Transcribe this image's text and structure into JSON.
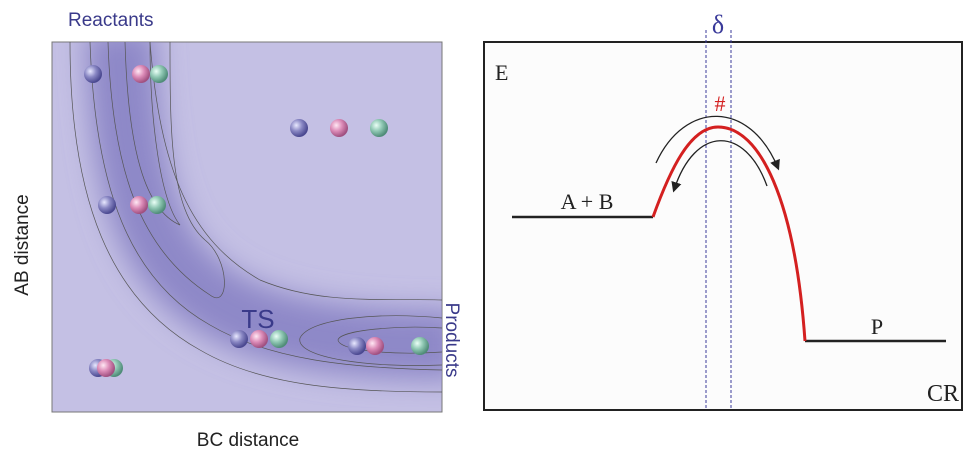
{
  "potential_surface": {
    "reactants_label": "Reactants",
    "y_axis_label": "AB distance",
    "x_axis_label": "BC distance",
    "transition_state_label": "TS",
    "products_label": "Products"
  },
  "energy_profile": {
    "delta_label": "δ",
    "y_axis_label": "E",
    "transition_state_label": "#",
    "reactants_label": "A + B",
    "products_label": "P",
    "x_axis_label": "CR"
  }
}
